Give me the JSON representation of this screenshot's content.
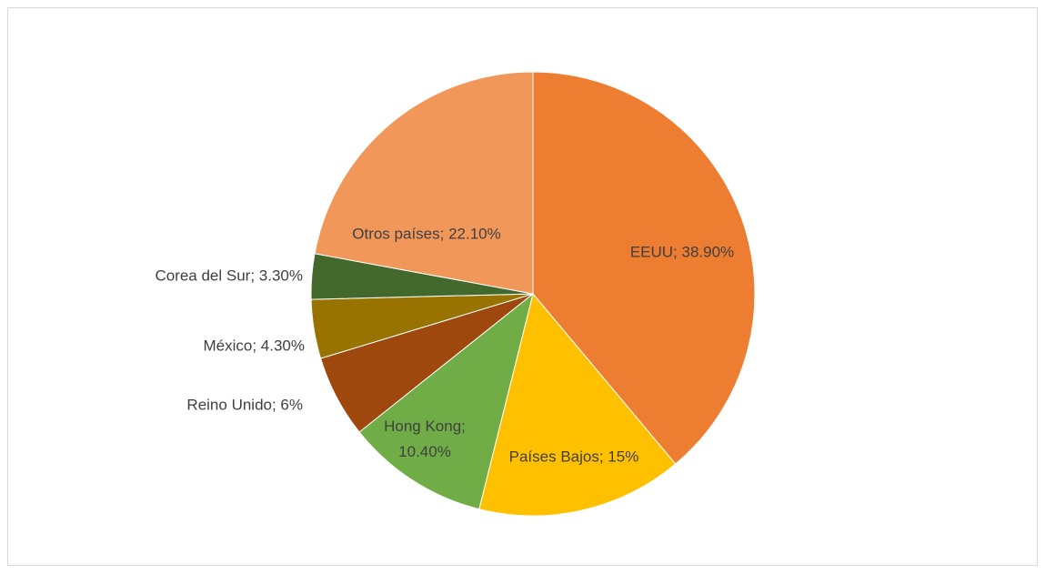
{
  "chart_data": {
    "type": "pie",
    "categories": [
      "EEUU",
      "Países Bajos",
      "Hong Kong",
      "Reino Unido",
      "México",
      "Corea del Sur",
      "Otros países"
    ],
    "values": [
      38.9,
      15,
      10.4,
      6,
      4.3,
      3.3,
      22.1
    ],
    "value_labels": [
      "EEUU; 38.90%",
      "Países Bajos; 15%",
      "Hong Kong; 10.40%",
      "Reino Unido; 6%",
      "México; 4.30%",
      "Corea del Sur; 3.30%",
      "Otros países; 22.10%"
    ],
    "colors": [
      "#ED7D31",
      "#FFC000",
      "#70AD47",
      "#9E480E",
      "#997300",
      "#43682B",
      "#F1975A"
    ]
  }
}
